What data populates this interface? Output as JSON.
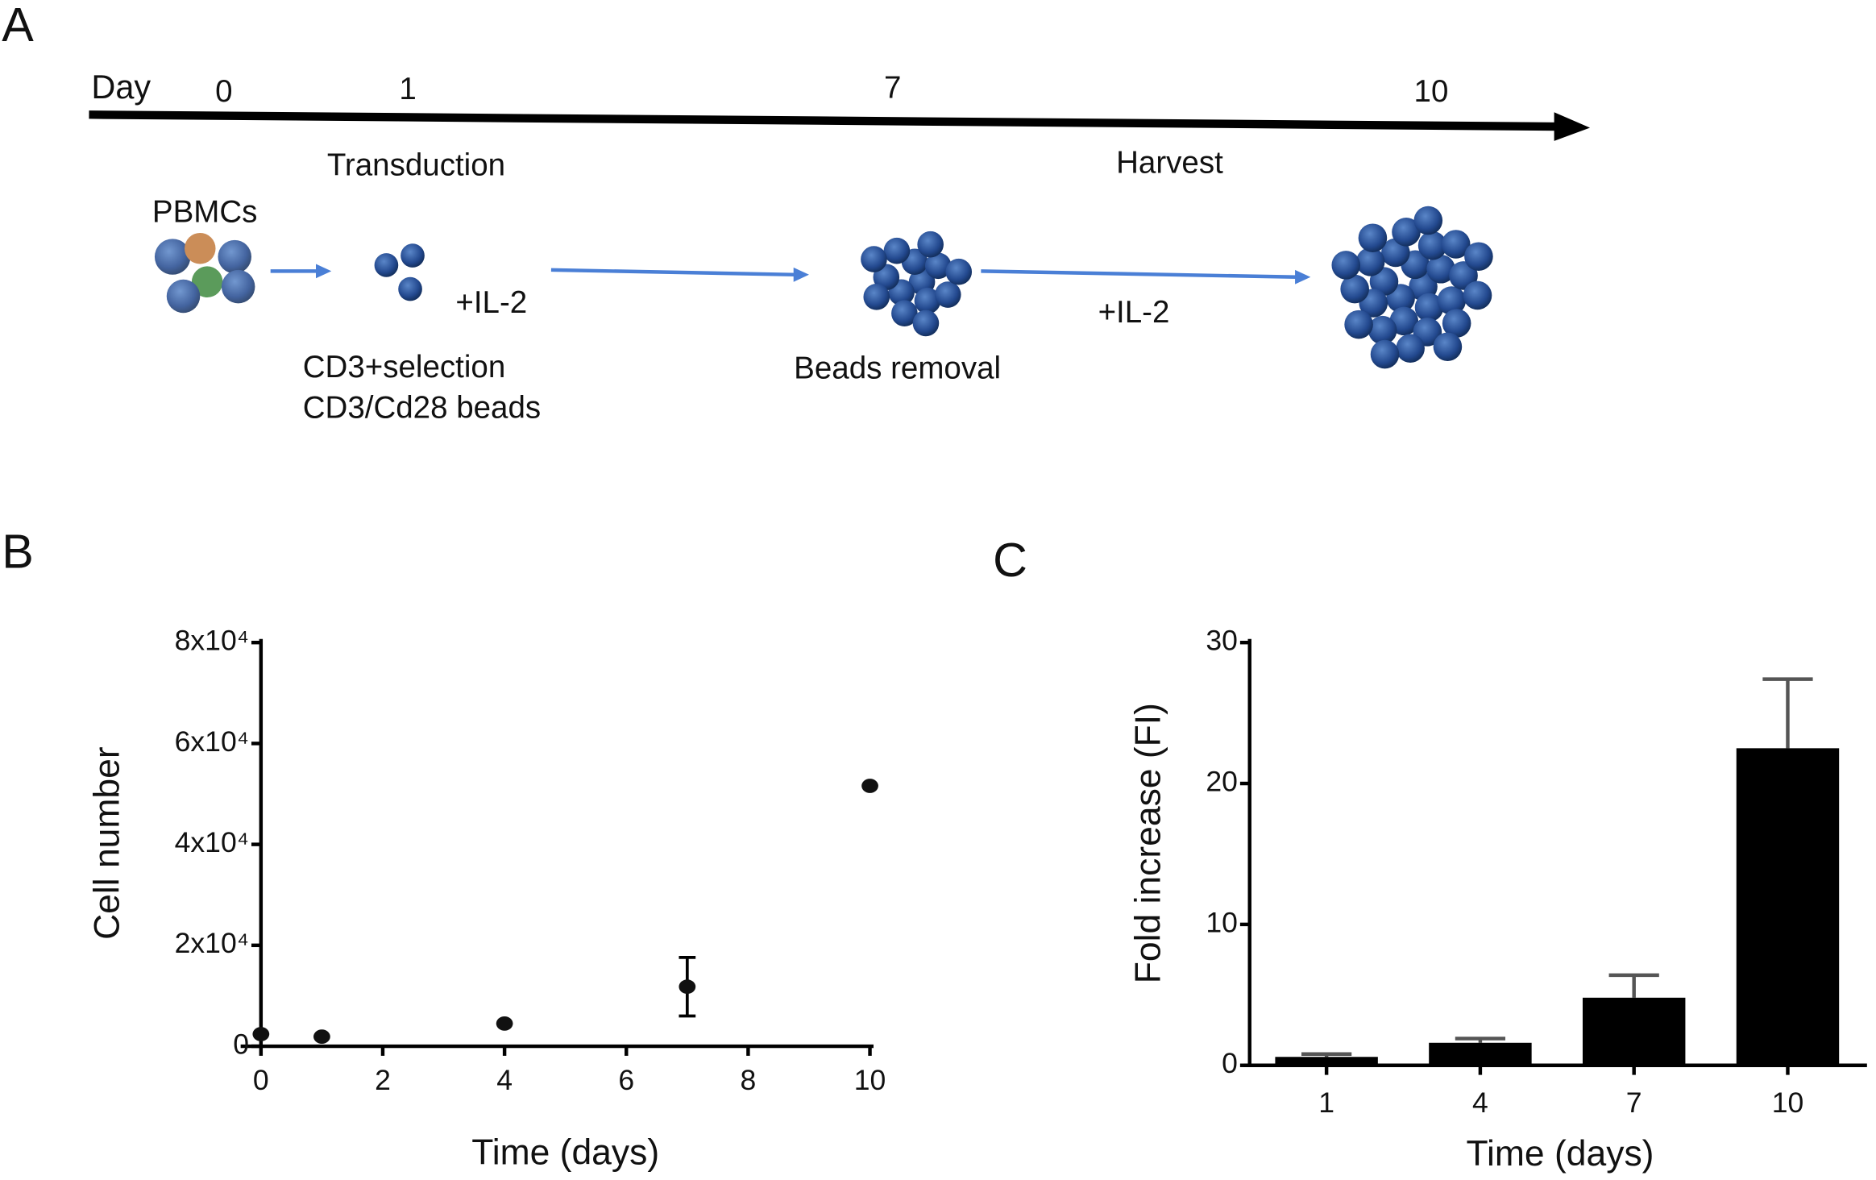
{
  "panel_labels": [
    "A",
    "B",
    "C"
  ],
  "timeline": {
    "axis_label": "Day",
    "days": [
      "0",
      "1",
      "7",
      "10"
    ],
    "steps": {
      "transduction": "Transduction",
      "harvest": "Harvest",
      "pbmcs": "PBMCs",
      "il2_first": "+IL-2",
      "selection": "CD3+selection",
      "beads": "CD3/Cd28 beads",
      "beads_removal": "Beads removal",
      "il2_second": "+IL-2"
    }
  },
  "chart_data": [
    {
      "type": "scatter",
      "x_label": "Time (days)",
      "y_label": "Cell number",
      "x": [
        0,
        1,
        4,
        7,
        10
      ],
      "values": [
        2400,
        1900,
        4500,
        11800,
        51600
      ],
      "errors": [
        null,
        null,
        null,
        5800,
        null
      ],
      "color": "#111111",
      "xlim": [
        0,
        10
      ],
      "xticks": [
        0,
        2,
        4,
        6,
        8,
        10
      ],
      "ylim": [
        0,
        80000
      ],
      "yticks": [
        0,
        {
          "value": 20000,
          "label": "2x10⁴"
        },
        {
          "value": 40000,
          "label": "4x10⁴"
        },
        {
          "value": 60000,
          "label": "6x10⁴"
        },
        {
          "value": 80000,
          "label": "8x10⁴"
        }
      ]
    },
    {
      "type": "bar",
      "x_label": "Time (days)",
      "y_label": "Fold increase (FI)",
      "categories": [
        "1",
        "4",
        "7",
        "10"
      ],
      "values": [
        0.6,
        1.6,
        4.8,
        22.5
      ],
      "errors": [
        0.2,
        0.3,
        1.6,
        4.9
      ],
      "color": "#000000",
      "ylim": [
        0,
        30
      ],
      "yticks": [
        0,
        10,
        20,
        30
      ]
    }
  ]
}
